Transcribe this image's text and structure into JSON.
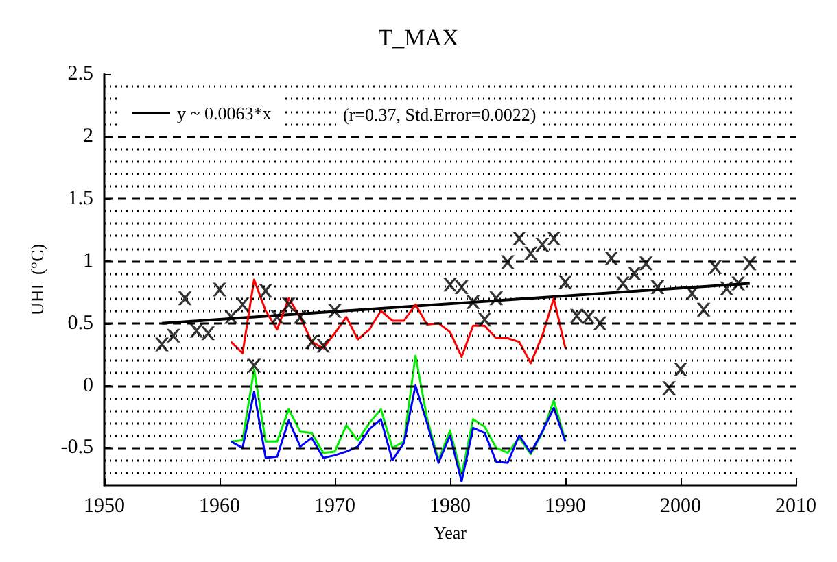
{
  "chart_data": {
    "type": "line",
    "title": "T_MAX",
    "xlabel": "Year",
    "ylabel": "UHI  (°C)",
    "xlim": [
      1950,
      2010
    ],
    "xticks": [
      1950,
      1960,
      1970,
      1980,
      1990,
      2000,
      2010
    ],
    "ylim": [
      -0.8,
      2.5
    ],
    "yticks": [
      -0.5,
      0,
      0.5,
      1,
      1.5,
      2,
      2.5
    ],
    "grid": true,
    "legend": "top left",
    "line_style": "solid",
    "annotations": [
      "(r=0.37, Std.Error=0.0022)"
    ],
    "series": [
      {
        "type": "scatter",
        "marker": "cross",
        "color": "#000000",
        "x": [
          1955,
          1956,
          1957,
          1958,
          1959,
          1960,
          1961,
          1962,
          1963,
          1964,
          1965,
          1966,
          1967,
          1968,
          1969,
          1970,
          1980,
          1981,
          1982,
          1983,
          1984,
          1985,
          1986,
          1987,
          1988,
          1989,
          1990,
          1991,
          1992,
          1993,
          1994,
          1995,
          1996,
          1997,
          1998,
          1999,
          2000,
          2001,
          2002,
          2003,
          2004,
          2005,
          2006
        ],
        "values": [
          0.33,
          0.4,
          0.7,
          0.44,
          0.42,
          0.77,
          0.55,
          0.65,
          0.16,
          0.76,
          0.55,
          0.65,
          0.55,
          0.35,
          0.32,
          0.6,
          0.81,
          0.79,
          0.67,
          0.53,
          0.7,
          0.99,
          1.18,
          1.06,
          1.13,
          1.18,
          0.83,
          0.56,
          0.55,
          0.5,
          1.02,
          0.82,
          0.9,
          0.98,
          0.79,
          -0.02,
          0.13,
          0.74,
          0.61,
          0.95,
          0.78,
          0.82,
          0.98
        ]
      },
      {
        "name": "y ~ 0.0063*x",
        "color": "#000000",
        "x": [
          1955,
          2006
        ],
        "values": [
          0.5,
          0.82
        ]
      },
      {
        "color": "#ff0000",
        "x": [
          1961,
          1962,
          1963,
          1964,
          1965,
          1966,
          1967,
          1968,
          1969,
          1970,
          1971,
          1972,
          1973,
          1974,
          1975,
          1976,
          1977,
          1978,
          1979,
          1980,
          1981,
          1982,
          1983,
          1984,
          1985,
          1986,
          1987,
          1988,
          1989,
          1990
        ],
        "values": [
          0.35,
          0.26,
          0.85,
          0.6,
          0.45,
          0.7,
          0.55,
          0.35,
          0.3,
          0.42,
          0.55,
          0.37,
          0.45,
          0.6,
          0.52,
          0.52,
          0.65,
          0.49,
          0.5,
          0.43,
          0.23,
          0.48,
          0.48,
          0.38,
          0.38,
          0.35,
          0.18,
          0.4,
          0.7,
          0.3
        ]
      },
      {
        "color": "#00ee00",
        "x": [
          1961,
          1962,
          1963,
          1964,
          1965,
          1966,
          1967,
          1968,
          1969,
          1970,
          1971,
          1972,
          1973,
          1974,
          1975,
          1976,
          1977,
          1978,
          1979,
          1980,
          1981,
          1982,
          1983,
          1984,
          1985,
          1986,
          1987,
          1988,
          1989,
          1990
        ],
        "values": [
          -0.45,
          -0.44,
          0.13,
          -0.45,
          -0.45,
          -0.19,
          -0.37,
          -0.38,
          -0.54,
          -0.53,
          -0.32,
          -0.44,
          -0.3,
          -0.19,
          -0.5,
          -0.45,
          0.24,
          -0.26,
          -0.6,
          -0.36,
          -0.72,
          -0.27,
          -0.33,
          -0.5,
          -0.54,
          -0.42,
          -0.55,
          -0.38,
          -0.12,
          -0.44
        ]
      },
      {
        "color": "#0000ff",
        "x": [
          1961,
          1962,
          1963,
          1964,
          1965,
          1966,
          1967,
          1968,
          1969,
          1970,
          1971,
          1972,
          1973,
          1974,
          1975,
          1976,
          1977,
          1978,
          1979,
          1980,
          1981,
          1982,
          1983,
          1984,
          1985,
          1986,
          1987,
          1988,
          1989,
          1990
        ],
        "values": [
          -0.45,
          -0.5,
          -0.05,
          -0.58,
          -0.57,
          -0.28,
          -0.49,
          -0.42,
          -0.58,
          -0.56,
          -0.53,
          -0.49,
          -0.35,
          -0.27,
          -0.6,
          -0.46,
          0.0,
          -0.3,
          -0.62,
          -0.4,
          -0.77,
          -0.34,
          -0.38,
          -0.61,
          -0.62,
          -0.4,
          -0.54,
          -0.37,
          -0.18,
          -0.45
        ]
      }
    ]
  }
}
